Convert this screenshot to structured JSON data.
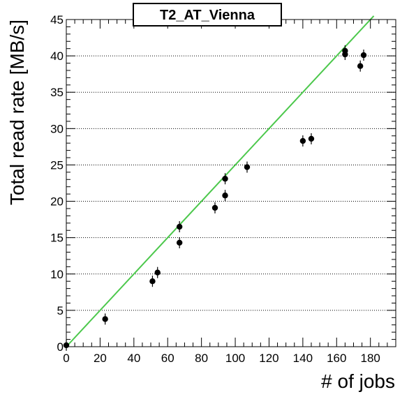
{
  "chart_data": {
    "type": "scatter",
    "title": "T2_AT_Vienna",
    "xlabel": "# of jobs",
    "ylabel": "Total read rate [MB/s]",
    "xlim": [
      0,
      195
    ],
    "ylim": [
      0,
      45
    ],
    "xticks": [
      "0",
      "20",
      "40",
      "60",
      "80",
      "100",
      "120",
      "140",
      "160",
      "180"
    ],
    "yticks": [
      "0",
      "5",
      "10",
      "15",
      "20",
      "25",
      "30",
      "35",
      "40",
      "45"
    ],
    "grid": "horizontal-dotted",
    "legend": "none",
    "points": [
      {
        "x": 0,
        "y": 0.2
      },
      {
        "x": 23,
        "y": 3.8
      },
      {
        "x": 51,
        "y": 9.0
      },
      {
        "x": 54,
        "y": 10.2
      },
      {
        "x": 67,
        "y": 16.5
      },
      {
        "x": 67,
        "y": 14.3
      },
      {
        "x": 88,
        "y": 19.1
      },
      {
        "x": 94,
        "y": 23.1
      },
      {
        "x": 94,
        "y": 20.8
      },
      {
        "x": 107,
        "y": 24.7
      },
      {
        "x": 140,
        "y": 28.3
      },
      {
        "x": 145,
        "y": 28.6
      },
      {
        "x": 165,
        "y": 40.7
      },
      {
        "x": 165,
        "y": 40.2
      },
      {
        "x": 174,
        "y": 38.6
      },
      {
        "x": 176,
        "y": 40.1
      }
    ],
    "fit_line": {
      "x": [
        0,
        182
      ],
      "y": [
        0,
        45.5
      ],
      "color": "#4cc84c"
    },
    "marker_color": "#000000",
    "axis_color": "#000000"
  }
}
